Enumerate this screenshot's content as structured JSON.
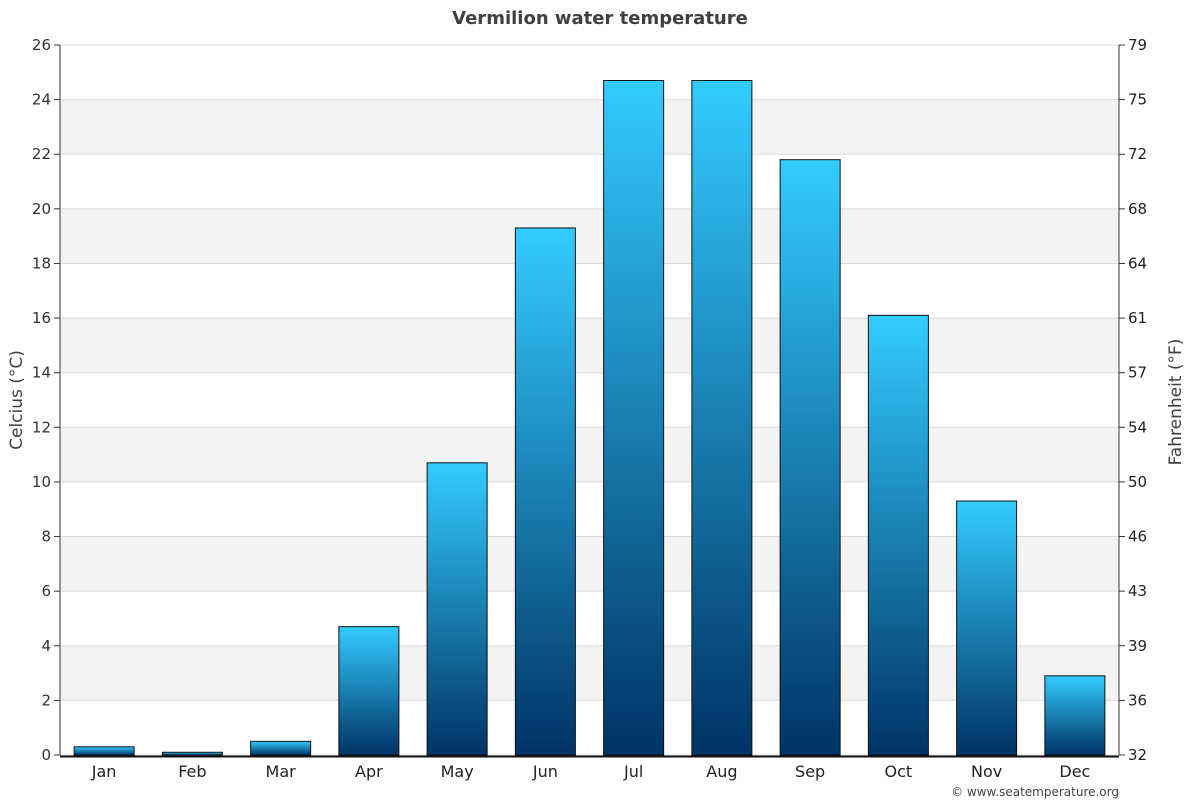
{
  "chart_data": {
    "type": "bar",
    "title": "Vermilion water temperature",
    "categories": [
      "Jan",
      "Feb",
      "Mar",
      "Apr",
      "May",
      "Jun",
      "Jul",
      "Aug",
      "Sep",
      "Oct",
      "Nov",
      "Dec"
    ],
    "series": [
      {
        "values": [
          0.3,
          0.1,
          0.5,
          4.7,
          10.7,
          19.3,
          24.7,
          24.7,
          21.8,
          16.1,
          9.3,
          2.9
        ]
      }
    ],
    "ylabel": "Celcius (°C)",
    "y2label": "Fahrenheit (°F)",
    "ylim": [
      0,
      26
    ],
    "yticks": [
      0,
      2,
      4,
      6,
      8,
      10,
      12,
      14,
      16,
      18,
      20,
      22,
      24,
      26
    ],
    "y2ticks": [
      "32",
      "36",
      "39",
      "43",
      "46",
      "50",
      "54",
      "57",
      "61",
      "64",
      "68",
      "72",
      "75",
      "79"
    ],
    "grid": true,
    "bar_color_top": "#33ccff",
    "bar_color_bottom": "#003366",
    "band_color": "#f3f3f3",
    "credit": "© www.seatemperature.org"
  }
}
